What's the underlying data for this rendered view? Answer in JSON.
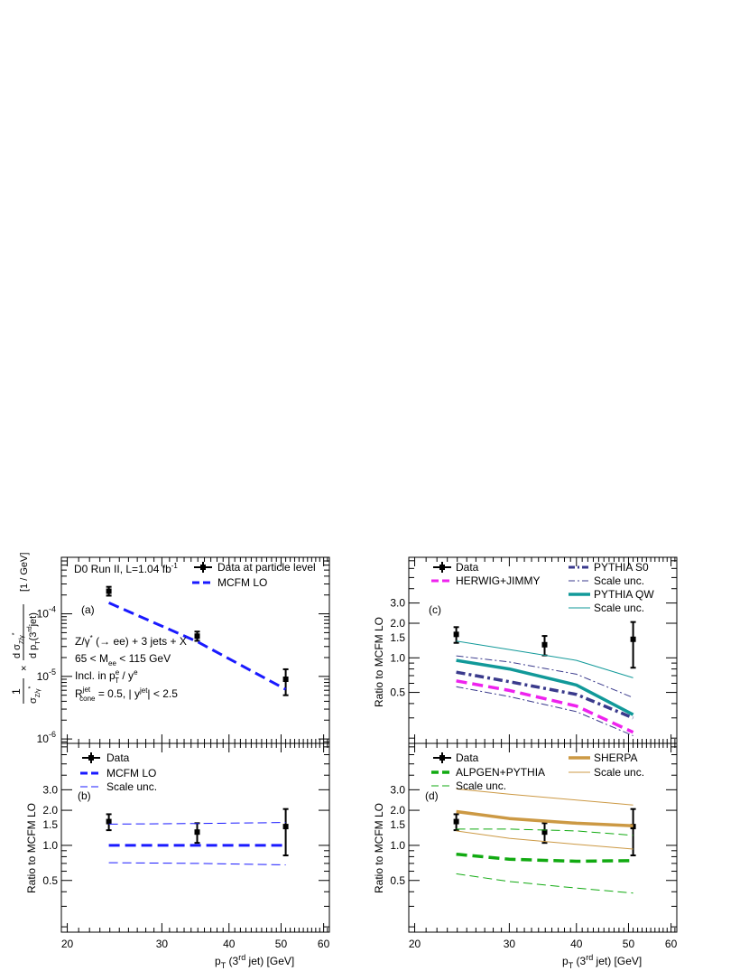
{
  "chart_data": [
    {
      "panel": "(a)",
      "type": "line",
      "scale": "log-log",
      "ylabel_bracket": "[1 / GeV]",
      "ylabel_num": "d σZ/γ*",
      "ylabel_den": "d pT(3rd jet)",
      "ylabel_pre": "1",
      "ylabel_pre_den": "σZ/γ*",
      "ylabel_times": "×",
      "xlim": [
        19.5,
        61.5
      ],
      "ylim": [
        8.5e-07,
        0.0008
      ],
      "y_ticks": [
        {
          "v": 0.0001,
          "base": "10",
          "exp": "-4"
        },
        {
          "v": 1e-05,
          "base": "10",
          "exp": "-5"
        },
        {
          "v": 1e-06,
          "base": "10",
          "exp": "-6"
        }
      ],
      "annotations": {
        "experiment": "D0 Run II, L=1.04 fb",
        "experiment_sup": "-1",
        "process": "Z/γ* (→ ee) + 3 jets + X",
        "mass_cut": "65 < Mee < 115 GeV",
        "incl": "Incl. in pTe / ye",
        "cone": "Rconejet = 0.5, | yjet| < 2.5"
      },
      "legend": [
        "Data at particle level",
        "MCFM  LO"
      ],
      "series": [
        {
          "name": "Data at particle level",
          "kind": "data",
          "x": [
            23.9,
            34.9,
            51.0
          ],
          "y": [
            0.00023,
            4.4e-05,
            9e-06
          ],
          "ylo": [
            0.000195,
            3.7e-05,
            5e-06
          ],
          "yhi": [
            0.00027,
            5.2e-05,
            1.3e-05
          ]
        },
        {
          "name": "MCFM  LO",
          "kind": "line",
          "color": "#1a1aff",
          "dash": "12,6",
          "width": 3,
          "x": [
            23.9,
            34.9,
            51.0
          ],
          "y": [
            0.00015,
            3.6e-05,
            6.2e-06
          ]
        }
      ]
    },
    {
      "panel": "(b)",
      "type": "line",
      "scale": "log-log",
      "ylabel": "Ratio  to  MCFM  LO",
      "xlim": [
        19.5,
        61.5
      ],
      "ylim": [
        0.18,
        7.5
      ],
      "y_ticks": [
        {
          "v": 0.5,
          "t": "0.5"
        },
        {
          "v": 1.0,
          "t": "1.0"
        },
        {
          "v": 1.5,
          "t": "1.5"
        },
        {
          "v": 2.0,
          "t": "2.0"
        },
        {
          "v": 3.0,
          "t": "3.0"
        }
      ],
      "legend": [
        "Data",
        "MCFM LO",
        "Scale unc."
      ],
      "series": [
        {
          "name": "Data",
          "kind": "data",
          "x": [
            23.9,
            34.9,
            51.0
          ],
          "y": [
            1.6,
            1.3,
            1.45
          ],
          "ylo": [
            1.35,
            1.05,
            0.82
          ],
          "yhi": [
            1.85,
            1.55,
            2.05
          ]
        },
        {
          "name": "MCFM LO",
          "kind": "line",
          "color": "#1a1aff",
          "dash": "12,6",
          "width": 3,
          "x": [
            23.9,
            51.0
          ],
          "y": [
            1.0,
            1.0
          ]
        },
        {
          "name": "Scale unc.",
          "kind": "line",
          "color": "#1a1aff",
          "dash": "10,5",
          "width": 1,
          "x": [
            23.9,
            35.0,
            51.0
          ],
          "y": [
            1.52,
            1.54,
            1.57
          ]
        },
        {
          "name": "Scale unc.",
          "kind": "line",
          "color": "#1a1aff",
          "dash": "10,5",
          "width": 1,
          "x": [
            23.9,
            35.0,
            51.0
          ],
          "y": [
            0.71,
            0.7,
            0.68
          ]
        }
      ]
    },
    {
      "panel": "(c)",
      "type": "line",
      "scale": "log-log",
      "ylabel": "Ratio  to  MCFM  LO",
      "xlim": [
        19.5,
        61.5
      ],
      "ylim": [
        0.18,
        7.5
      ],
      "y_ticks": [
        {
          "v": 0.5,
          "t": "0.5"
        },
        {
          "v": 1.0,
          "t": "1.0"
        },
        {
          "v": 1.5,
          "t": "1.5"
        },
        {
          "v": 2.0,
          "t": "2.0"
        },
        {
          "v": 3.0,
          "t": "3.0"
        }
      ],
      "legend": [
        "Data",
        "HERWIG+JIMMY",
        "PYTHIA S0",
        "Scale unc.",
        "PYTHIA QW",
        "Scale unc."
      ],
      "series": [
        {
          "name": "Data",
          "kind": "data",
          "x": [
            23.9,
            34.9,
            51.0
          ],
          "y": [
            1.6,
            1.3,
            1.45
          ],
          "ylo": [
            1.35,
            1.05,
            0.82
          ],
          "yhi": [
            1.85,
            1.55,
            2.05
          ]
        },
        {
          "name": "PYTHIA QW scale unc.",
          "kind": "line",
          "color": "#119999",
          "dash": "",
          "width": 1,
          "x": [
            23.9,
            30,
            40,
            51.0
          ],
          "y": [
            1.4,
            1.18,
            0.95,
            0.67
          ]
        },
        {
          "name": "PYTHIA S0 scale unc.",
          "kind": "line",
          "color": "#3a3a8c",
          "dash": "8,3,2,3",
          "width": 1,
          "x": [
            23.9,
            30,
            40,
            51.0
          ],
          "y": [
            1.04,
            0.92,
            0.72,
            0.45
          ]
        },
        {
          "name": "PYTHIA QW",
          "kind": "line",
          "color": "#119999",
          "dash": "",
          "width": 3.5,
          "x": [
            23.9,
            30,
            40,
            51.0
          ],
          "y": [
            0.95,
            0.8,
            0.58,
            0.32
          ]
        },
        {
          "name": "PYTHIA S0",
          "kind": "line",
          "color": "#3a3a8c",
          "dash": "10,4,3,4",
          "width": 3.5,
          "x": [
            23.9,
            30,
            40,
            51.0
          ],
          "y": [
            0.75,
            0.62,
            0.48,
            0.3
          ]
        },
        {
          "name": "HERWIG+JIMMY",
          "kind": "line",
          "color": "#ee22ee",
          "dash": "12,6",
          "width": 3.5,
          "x": [
            23.9,
            30,
            40,
            51.0
          ],
          "y": [
            0.63,
            0.52,
            0.38,
            0.225
          ]
        },
        {
          "name": "PYTHIA S0 scale unc.",
          "kind": "line",
          "color": "#3a3a8c",
          "dash": "8,3,2,3",
          "width": 1,
          "x": [
            23.9,
            30,
            40,
            51.0
          ],
          "y": [
            0.56,
            0.46,
            0.34,
            0.21
          ]
        }
      ]
    },
    {
      "panel": "(d)",
      "type": "line",
      "scale": "log-log",
      "ylabel": "Ratio  to  MCFM  LO",
      "xlim": [
        19.5,
        61.5
      ],
      "ylim": [
        0.18,
        7.5
      ],
      "y_ticks": [
        {
          "v": 0.5,
          "t": "0.5"
        },
        {
          "v": 1.0,
          "t": "1.0"
        },
        {
          "v": 1.5,
          "t": "1.5"
        },
        {
          "v": 2.0,
          "t": "2.0"
        },
        {
          "v": 3.0,
          "t": "3.0"
        }
      ],
      "legend": [
        "Data",
        "ALPGEN+PYTHIA",
        "Scale unc.",
        "SHERPA",
        "Scale unc."
      ],
      "series": [
        {
          "name": "Data",
          "kind": "data",
          "x": [
            23.9,
            34.9,
            51.0
          ],
          "y": [
            1.6,
            1.3,
            1.45
          ],
          "ylo": [
            1.35,
            1.05,
            0.82
          ],
          "yhi": [
            1.85,
            1.55,
            2.05
          ]
        },
        {
          "name": "SHERPA scale unc.",
          "kind": "line",
          "color": "#cc9944",
          "dash": "",
          "width": 1,
          "x": [
            23.9,
            30,
            40,
            51.0
          ],
          "y": [
            3.05,
            2.75,
            2.45,
            2.22
          ]
        },
        {
          "name": "SHERPA",
          "kind": "line",
          "color": "#cc9944",
          "dash": "",
          "width": 3.5,
          "x": [
            23.9,
            30,
            40,
            51.0
          ],
          "y": [
            1.95,
            1.7,
            1.55,
            1.47
          ]
        },
        {
          "name": "SHERPA scale unc.",
          "kind": "line",
          "color": "#cc9944",
          "dash": "",
          "width": 1,
          "x": [
            23.9,
            30,
            40,
            51.0
          ],
          "y": [
            1.33,
            1.15,
            1.02,
            0.93
          ]
        },
        {
          "name": "ALPGEN+PYTHIA scale unc.",
          "kind": "line",
          "color": "#11aa11",
          "dash": "10,5",
          "width": 1,
          "x": [
            23.9,
            30,
            40,
            51.0
          ],
          "y": [
            1.38,
            1.38,
            1.33,
            1.22
          ]
        },
        {
          "name": "ALPGEN+PYTHIA",
          "kind": "line",
          "color": "#11aa11",
          "dash": "12,6",
          "width": 3.5,
          "x": [
            23.9,
            30,
            40,
            51.0
          ],
          "y": [
            0.84,
            0.76,
            0.73,
            0.74
          ]
        },
        {
          "name": "ALPGEN+PYTHIA scale unc.",
          "kind": "line",
          "color": "#11aa11",
          "dash": "10,5",
          "width": 1,
          "x": [
            23.9,
            30,
            40,
            51.0
          ],
          "y": [
            0.57,
            0.49,
            0.43,
            0.39
          ]
        }
      ]
    }
  ],
  "x_axis": {
    "label": "pT (3rd jet)  [GeV]",
    "label_p": "p",
    "label_sub": "T",
    "label_mid": " (3",
    "label_sup": "rd",
    "label_end": " jet)  [GeV]",
    "ticks": [
      {
        "v": 20,
        "t": "20"
      },
      {
        "v": 30,
        "t": "30"
      },
      {
        "v": 40,
        "t": "40"
      },
      {
        "v": 50,
        "t": "50"
      },
      {
        "v": 60,
        "t": "60"
      }
    ]
  },
  "panel_labels": {
    "a": "(a)",
    "b": "(b)",
    "c": "(c)",
    "d": "(d)"
  },
  "legend_text": {
    "a1": "Data at particle level",
    "a2": "MCFM  LO",
    "b1": "Data",
    "b2": "MCFM LO",
    "b3": "Scale unc.",
    "c1": "Data",
    "c2": "HERWIG+JIMMY",
    "c3": "PYTHIA S0",
    "c4": "Scale unc.",
    "c5": "PYTHIA QW",
    "c6": "Scale unc.",
    "d1": "Data",
    "d2": "ALPGEN+PYTHIA",
    "d3": "Scale unc.",
    "d4": "SHERPA",
    "d5": "Scale unc."
  },
  "text_a": {
    "exp": "D0 Run II, L=1.04 fb",
    "exp_sup": "-1",
    "proc1": "Z/γ",
    "proc_sup": "*",
    "proc2": " (→ ee) + 3 jets + X",
    "mass1": "65 < M",
    "mass_sub": "ee",
    "mass2": " < 115 GeV",
    "incl1": "Incl. in p",
    "incl_sup": "e",
    "incl_sub": "T",
    "incl2": " / y",
    "incl_sup2": "e",
    "cone1": "R",
    "cone_sup": "jet",
    "cone_sub": "cone",
    "cone2": " = 0.5, | y",
    "cone_sup2": "jet",
    "cone3": "| < 2.5",
    "unit": "[1 / GeV]",
    "one": "1",
    "times": "×",
    "sigma": "σ",
    "sigsub": "Z/γ",
    "sigsup": "*",
    "dsig": "d σ",
    "dpt": "d p",
    "dpt_sub": "T",
    "dpt_rest": "(3",
    "dpt_sup": "rd",
    "dpt_end": "jet)"
  },
  "ratio_label": "Ratio  to  MCFM  LO"
}
